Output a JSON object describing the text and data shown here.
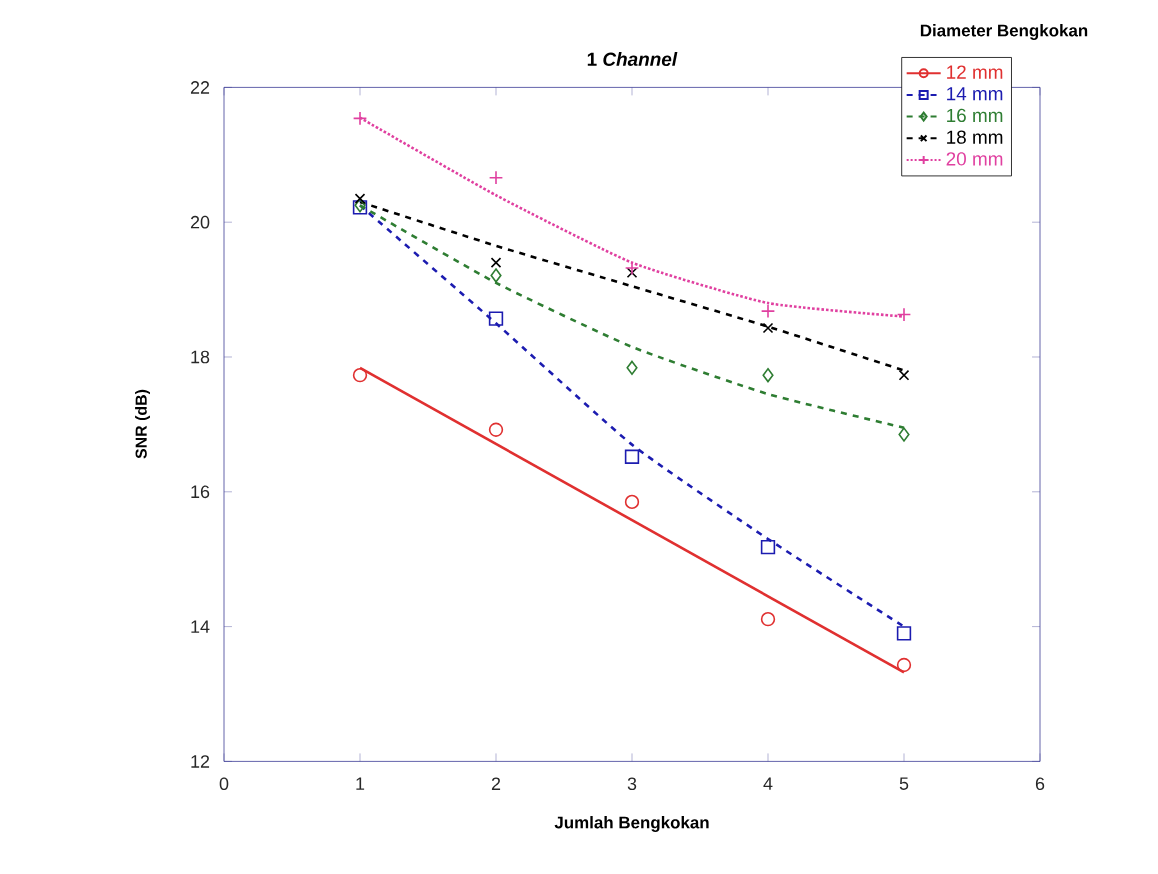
{
  "chart_data": {
    "type": "scatter",
    "title": "1 *Channel*",
    "xlabel": "Jumlah Bengkokan",
    "ylabel": "SNR (dB)",
    "legend_title": "Diameter Bengkokan",
    "xlim": [
      0,
      6
    ],
    "xticks": [
      0,
      1,
      2,
      3,
      4,
      5,
      6
    ],
    "ylim": [
      12,
      22
    ],
    "yticks": [
      12,
      14,
      16,
      18,
      20,
      22
    ],
    "grid": false,
    "legend": "top right",
    "series": [
      {
        "name": "12 mm",
        "color": "#e03030",
        "marker": "circle",
        "x": [
          1,
          2,
          3,
          4,
          5
        ],
        "values": [
          17.73,
          16.92,
          15.85,
          14.11,
          13.43
        ]
      },
      {
        "name": "14 mm",
        "color": "#1c1cb0",
        "marker": "square",
        "x": [
          1,
          2,
          3,
          4,
          5
        ],
        "values": [
          20.22,
          18.57,
          16.52,
          15.18,
          13.9
        ]
      },
      {
        "name": "16 mm",
        "color": "#2e7d32",
        "marker": "diamond",
        "x": [
          1,
          2,
          3,
          4,
          5
        ],
        "values": [
          20.25,
          19.21,
          17.84,
          17.73,
          16.85
        ]
      },
      {
        "name": "18 mm",
        "color": "#000000",
        "marker": "cross",
        "x": [
          1,
          2,
          3,
          4,
          5
        ],
        "values": [
          20.35,
          19.4,
          19.25,
          18.43,
          17.73
        ]
      },
      {
        "name": "20 mm",
        "color": "#e040a0",
        "marker": "plus",
        "x": [
          1,
          2,
          3,
          4,
          5
        ],
        "values": [
          21.54,
          20.66,
          19.32,
          18.68,
          18.63
        ]
      },
      {
        "type": "line",
        "color": "#e03030",
        "line_style": "solid",
        "x": [
          1,
          5
        ],
        "values": [
          17.84,
          13.32
        ]
      },
      {
        "type": "line",
        "color": "#1c1cb0",
        "line_style": "dashed",
        "x": [
          1,
          2,
          3,
          4,
          5
        ],
        "values": [
          20.25,
          18.5,
          16.7,
          15.3,
          14.0
        ]
      },
      {
        "type": "line",
        "color": "#2e7d32",
        "line_style": "dashed",
        "x": [
          1,
          2,
          3,
          4,
          5
        ],
        "values": [
          20.25,
          19.1,
          18.15,
          17.45,
          16.95
        ]
      },
      {
        "type": "line",
        "color": "#000000",
        "line_style": "dashed",
        "x": [
          1,
          2,
          3,
          4,
          5
        ],
        "values": [
          20.3,
          19.65,
          19.05,
          18.45,
          17.8
        ]
      },
      {
        "type": "line",
        "color": "#e040a0",
        "line_style": "dotted",
        "x": [
          1,
          2,
          3,
          4,
          5
        ],
        "values": [
          21.55,
          20.4,
          19.4,
          18.8,
          18.6
        ]
      }
    ]
  }
}
